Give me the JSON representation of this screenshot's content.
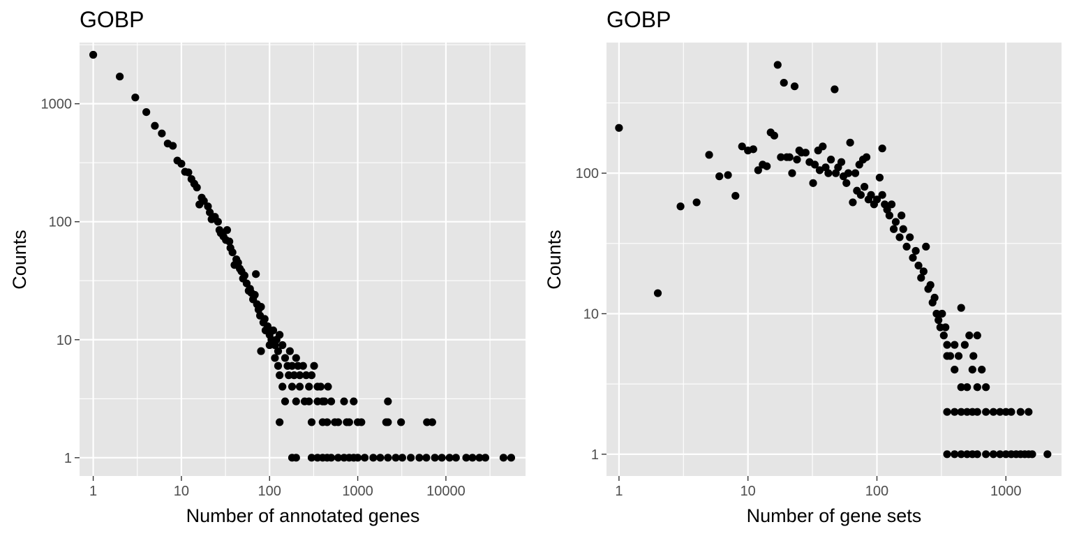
{
  "chart_data": [
    {
      "type": "scatter",
      "title": "GOBP",
      "xlabel": "Number of annotated genes",
      "ylabel": "Counts",
      "x_scale": "log10",
      "y_scale": "log10",
      "xlim": [
        0.7,
        80000
      ],
      "ylim": [
        0.7,
        3300
      ],
      "x_ticks": [
        1,
        10,
        100,
        1000,
        10000
      ],
      "x_tick_labels": [
        "1",
        "10",
        "100",
        "1000",
        "10000"
      ],
      "y_ticks": [
        1,
        10,
        100,
        1000
      ],
      "y_tick_labels": [
        "1",
        "10",
        "100",
        "1000"
      ],
      "grid": true,
      "point_color": "#000000",
      "panel_color": "#e5e5e5",
      "points": [
        [
          1,
          2600
        ],
        [
          2,
          1700
        ],
        [
          3,
          1130
        ],
        [
          4,
          850
        ],
        [
          5,
          650
        ],
        [
          6,
          560
        ],
        [
          7,
          460
        ],
        [
          8,
          440
        ],
        [
          9,
          330
        ],
        [
          10,
          310
        ],
        [
          11,
          265
        ],
        [
          12,
          262
        ],
        [
          13,
          230
        ],
        [
          14,
          210
        ],
        [
          15,
          195
        ],
        [
          16,
          140
        ],
        [
          17,
          160
        ],
        [
          18,
          150
        ],
        [
          20,
          135
        ],
        [
          21,
          120
        ],
        [
          22,
          105
        ],
        [
          24,
          110
        ],
        [
          26,
          100
        ],
        [
          27,
          85
        ],
        [
          28,
          80
        ],
        [
          30,
          75
        ],
        [
          32,
          70
        ],
        [
          33,
          85
        ],
        [
          35,
          68
        ],
        [
          36,
          60
        ],
        [
          38,
          55
        ],
        [
          40,
          43
        ],
        [
          42,
          48
        ],
        [
          44,
          45
        ],
        [
          46,
          40
        ],
        [
          48,
          38
        ],
        [
          50,
          33
        ],
        [
          52,
          35
        ],
        [
          55,
          30
        ],
        [
          58,
          26
        ],
        [
          60,
          27
        ],
        [
          62,
          25
        ],
        [
          65,
          22
        ],
        [
          68,
          24
        ],
        [
          70,
          36
        ],
        [
          72,
          20
        ],
        [
          75,
          18
        ],
        [
          78,
          16
        ],
        [
          80,
          19
        ],
        [
          85,
          14
        ],
        [
          88,
          15
        ],
        [
          90,
          12
        ],
        [
          95,
          13
        ],
        [
          100,
          11
        ],
        [
          105,
          10
        ],
        [
          110,
          12
        ],
        [
          115,
          9
        ],
        [
          120,
          10
        ],
        [
          125,
          8
        ],
        [
          130,
          11
        ],
        [
          140,
          9
        ],
        [
          150,
          7
        ],
        [
          160,
          6
        ],
        [
          170,
          8
        ],
        [
          180,
          6
        ],
        [
          190,
          5
        ],
        [
          200,
          7
        ],
        [
          210,
          6
        ],
        [
          220,
          5
        ],
        [
          240,
          6
        ],
        [
          260,
          5
        ],
        [
          280,
          4
        ],
        [
          300,
          5
        ],
        [
          320,
          6
        ],
        [
          350,
          4
        ],
        [
          380,
          4
        ],
        [
          420,
          3
        ],
        [
          460,
          4
        ],
        [
          80,
          8
        ],
        [
          100,
          9
        ],
        [
          115,
          7
        ],
        [
          125,
          6
        ],
        [
          130,
          5
        ],
        [
          140,
          4
        ],
        [
          150,
          3
        ],
        [
          165,
          5
        ],
        [
          180,
          4
        ],
        [
          200,
          3
        ],
        [
          220,
          4
        ],
        [
          250,
          3
        ],
        [
          280,
          3
        ],
        [
          300,
          2
        ],
        [
          350,
          3
        ],
        [
          400,
          2
        ],
        [
          500,
          3
        ],
        [
          550,
          2
        ],
        [
          600,
          2
        ],
        [
          700,
          3
        ],
        [
          800,
          2
        ],
        [
          900,
          3
        ],
        [
          1000,
          2
        ],
        [
          1100,
          2
        ],
        [
          2200,
          3
        ],
        [
          2100,
          2
        ],
        [
          2200,
          2
        ],
        [
          3100,
          2
        ],
        [
          6100,
          2
        ],
        [
          7000,
          2
        ],
        [
          130,
          2
        ],
        [
          400,
          3
        ],
        [
          450,
          2
        ],
        [
          750,
          2
        ],
        [
          180,
          1
        ],
        [
          200,
          1
        ],
        [
          300,
          1
        ],
        [
          350,
          1
        ],
        [
          400,
          1
        ],
        [
          450,
          1
        ],
        [
          500,
          1
        ],
        [
          600,
          1
        ],
        [
          700,
          1
        ],
        [
          800,
          1
        ],
        [
          900,
          1
        ],
        [
          1000,
          1
        ],
        [
          1200,
          1
        ],
        [
          1500,
          1
        ],
        [
          1800,
          1
        ],
        [
          2200,
          1
        ],
        [
          2700,
          1
        ],
        [
          3200,
          1
        ],
        [
          4000,
          1
        ],
        [
          5000,
          1
        ],
        [
          6000,
          1
        ],
        [
          7500,
          1
        ],
        [
          9000,
          1
        ],
        [
          11000,
          1
        ],
        [
          13000,
          1
        ],
        [
          17000,
          1
        ],
        [
          20000,
          1
        ],
        [
          24000,
          1
        ],
        [
          28000,
          1
        ],
        [
          45000,
          1
        ],
        [
          55000,
          1
        ]
      ]
    },
    {
      "type": "scatter",
      "title": "GOBP",
      "xlabel": "Number of gene sets",
      "ylabel": "Counts",
      "x_scale": "log10",
      "y_scale": "log10",
      "xlim": [
        0.8,
        2700
      ],
      "ylim": [
        0.7,
        850
      ],
      "x_ticks": [
        1,
        10,
        100,
        1000
      ],
      "x_tick_labels": [
        "1",
        "10",
        "100",
        "1000"
      ],
      "y_ticks": [
        1,
        10,
        100
      ],
      "y_tick_labels": [
        "1",
        "10",
        "100"
      ],
      "grid": true,
      "point_color": "#000000",
      "panel_color": "#e5e5e5",
      "points": [
        [
          1,
          210
        ],
        [
          2,
          14
        ],
        [
          3,
          58
        ],
        [
          4,
          62
        ],
        [
          5,
          135
        ],
        [
          6,
          95
        ],
        [
          7,
          97
        ],
        [
          8,
          69
        ],
        [
          9,
          155
        ],
        [
          10,
          145
        ],
        [
          11,
          148
        ],
        [
          12,
          105
        ],
        [
          13,
          115
        ],
        [
          14,
          112
        ],
        [
          15,
          195
        ],
        [
          16,
          185
        ],
        [
          17,
          590
        ],
        [
          18,
          130
        ],
        [
          19,
          440
        ],
        [
          20,
          130
        ],
        [
          21,
          130
        ],
        [
          22,
          100
        ],
        [
          23,
          415
        ],
        [
          24,
          125
        ],
        [
          25,
          145
        ],
        [
          26,
          140
        ],
        [
          28,
          140
        ],
        [
          30,
          120
        ],
        [
          32,
          85
        ],
        [
          33,
          115
        ],
        [
          35,
          145
        ],
        [
          36,
          105
        ],
        [
          38,
          155
        ],
        [
          40,
          110
        ],
        [
          42,
          100
        ],
        [
          44,
          125
        ],
        [
          47,
          395
        ],
        [
          48,
          100
        ],
        [
          50,
          110
        ],
        [
          53,
          120
        ],
        [
          55,
          95
        ],
        [
          58,
          85
        ],
        [
          60,
          100
        ],
        [
          62,
          165
        ],
        [
          65,
          62
        ],
        [
          68,
          100
        ],
        [
          70,
          75
        ],
        [
          73,
          115
        ],
        [
          75,
          70
        ],
        [
          78,
          125
        ],
        [
          80,
          80
        ],
        [
          83,
          130
        ],
        [
          86,
          65
        ],
        [
          90,
          70
        ],
        [
          95,
          60
        ],
        [
          100,
          65
        ],
        [
          105,
          93
        ],
        [
          110,
          150
        ],
        [
          110,
          70
        ],
        [
          115,
          60
        ],
        [
          120,
          55
        ],
        [
          125,
          50
        ],
        [
          130,
          60
        ],
        [
          135,
          40
        ],
        [
          140,
          45
        ],
        [
          150,
          35
        ],
        [
          155,
          50
        ],
        [
          160,
          40
        ],
        [
          170,
          30
        ],
        [
          180,
          35
        ],
        [
          190,
          25
        ],
        [
          200,
          28
        ],
        [
          210,
          22
        ],
        [
          220,
          18
        ],
        [
          230,
          20
        ],
        [
          240,
          30
        ],
        [
          250,
          15
        ],
        [
          260,
          16
        ],
        [
          270,
          12
        ],
        [
          280,
          13
        ],
        [
          290,
          10
        ],
        [
          300,
          9
        ],
        [
          310,
          8
        ],
        [
          320,
          10
        ],
        [
          330,
          7
        ],
        [
          340,
          8
        ],
        [
          350,
          6
        ],
        [
          370,
          5
        ],
        [
          400,
          6
        ],
        [
          430,
          5
        ],
        [
          450,
          11
        ],
        [
          480,
          6
        ],
        [
          520,
          7
        ],
        [
          560,
          5
        ],
        [
          600,
          7
        ],
        [
          650,
          4
        ],
        [
          700,
          3
        ],
        [
          350,
          5
        ],
        [
          400,
          4
        ],
        [
          450,
          3
        ],
        [
          500,
          3
        ],
        [
          550,
          4
        ],
        [
          600,
          3
        ],
        [
          350,
          2
        ],
        [
          400,
          2
        ],
        [
          450,
          2
        ],
        [
          500,
          2
        ],
        [
          550,
          2
        ],
        [
          600,
          2
        ],
        [
          700,
          2
        ],
        [
          800,
          2
        ],
        [
          900,
          2
        ],
        [
          1000,
          2
        ],
        [
          1100,
          2
        ],
        [
          1300,
          2
        ],
        [
          1500,
          2
        ],
        [
          350,
          1
        ],
        [
          400,
          1
        ],
        [
          450,
          1
        ],
        [
          500,
          1
        ],
        [
          550,
          1
        ],
        [
          600,
          1
        ],
        [
          700,
          1
        ],
        [
          800,
          1
        ],
        [
          900,
          1
        ],
        [
          1000,
          1
        ],
        [
          1100,
          1
        ],
        [
          1200,
          1
        ],
        [
          1300,
          1
        ],
        [
          1400,
          1
        ],
        [
          1500,
          1
        ],
        [
          1600,
          1
        ],
        [
          2100,
          1
        ]
      ]
    }
  ]
}
